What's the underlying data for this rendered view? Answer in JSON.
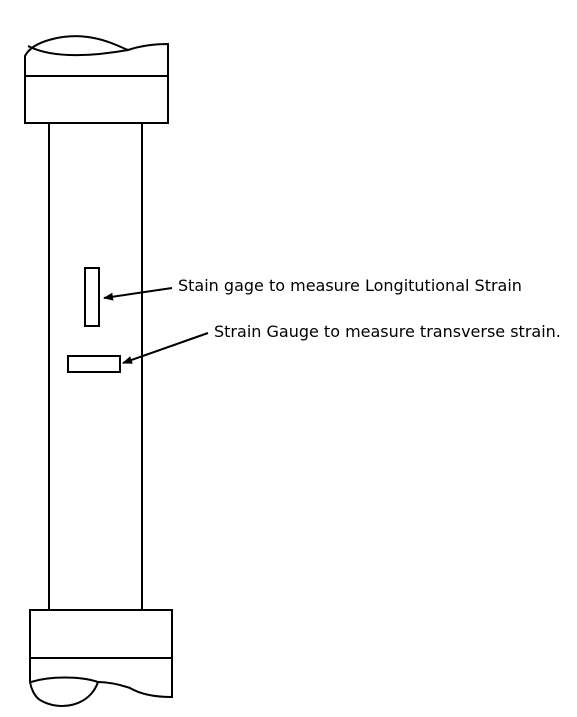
{
  "annotations": {
    "longitudinal": "Stain gage to measure Longitutional Strain",
    "transverse": "Strain Gauge to measure transverse strain."
  },
  "colors": {
    "stroke": "#000000",
    "background": "#ffffff"
  }
}
